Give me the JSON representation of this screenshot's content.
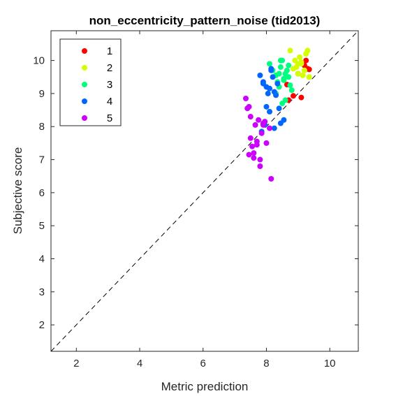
{
  "chart_data": {
    "type": "scatter",
    "title": "non_eccentricity_pattern_noise (tid2013)",
    "xlabel": "Metric prediction",
    "ylabel": "Subjective score",
    "xlim": [
      1.2,
      10.9
    ],
    "ylim": [
      1.2,
      10.9
    ],
    "xticks": [
      2,
      4,
      6,
      8,
      10
    ],
    "yticks": [
      2,
      3,
      4,
      5,
      6,
      7,
      8,
      9,
      10
    ],
    "grid": false,
    "legend_position": "top-left",
    "reference_line": "y = x (dashed)",
    "series": [
      {
        "name": "1",
        "color": "#ff0000",
        "x": [
          8.65,
          8.7,
          8.85,
          9.0,
          9.1,
          9.2,
          9.25,
          9.3,
          9.35,
          9.15
        ],
        "y": [
          9.27,
          8.8,
          8.93,
          9.6,
          8.88,
          9.85,
          10.0,
          9.75,
          9.73,
          9.9
        ]
      },
      {
        "name": "2",
        "color": "#d4ff00",
        "x": [
          8.75,
          8.9,
          8.95,
          9.0,
          9.05,
          9.1,
          9.15,
          9.2,
          9.25,
          9.3,
          9.0,
          8.85,
          9.35,
          9.1
        ],
        "y": [
          10.3,
          10.0,
          9.8,
          9.9,
          10.1,
          9.9,
          9.55,
          9.7,
          10.2,
          10.3,
          9.6,
          9.75,
          9.5,
          9.95
        ]
      },
      {
        "name": "3",
        "color": "#00ff7f",
        "x": [
          8.1,
          8.2,
          8.3,
          8.35,
          8.4,
          8.45,
          8.5,
          8.55,
          8.6,
          8.65,
          8.7,
          8.75,
          8.8,
          8.5,
          8.4,
          8.6,
          8.3,
          8.45,
          8.55,
          8.7
        ],
        "y": [
          9.9,
          9.7,
          9.55,
          9.35,
          9.6,
          9.8,
          10.0,
          9.4,
          9.6,
          9.7,
          9.5,
          9.25,
          9.1,
          8.7,
          9.2,
          8.8,
          9.0,
          10.0,
          9.45,
          9.85
        ],
        "note_excluded": "no"
      },
      {
        "name": "4",
        "color": "#0066ff",
        "x": [
          7.8,
          7.9,
          8.0,
          8.05,
          8.1,
          8.15,
          8.2,
          8.25,
          8.3,
          8.35,
          8.4,
          8.45,
          7.95,
          7.85,
          8.0,
          8.25,
          8.55,
          8.15,
          7.9,
          8.1
        ],
        "y": [
          9.55,
          9.3,
          9.2,
          9.0,
          9.15,
          9.7,
          9.5,
          9.05,
          8.95,
          9.3,
          8.55,
          8.1,
          8.05,
          7.85,
          8.6,
          7.95,
          8.2,
          9.75,
          9.35,
          8.45
        ]
      },
      {
        "name": "5",
        "color": "#cc00ff",
        "x": [
          7.35,
          7.4,
          7.45,
          7.5,
          7.55,
          7.6,
          7.65,
          7.7,
          7.75,
          7.8,
          7.85,
          7.9,
          7.95,
          8.0,
          8.1,
          8.15,
          7.45,
          7.6,
          7.8,
          7.7,
          7.5,
          7.9
        ],
        "y": [
          8.85,
          8.55,
          7.15,
          8.3,
          7.4,
          7.05,
          8.05,
          7.55,
          8.2,
          7.0,
          7.8,
          8.1,
          8.15,
          7.5,
          7.95,
          6.42,
          8.6,
          7.2,
          6.8,
          7.45,
          7.65,
          8.05
        ]
      }
    ]
  }
}
